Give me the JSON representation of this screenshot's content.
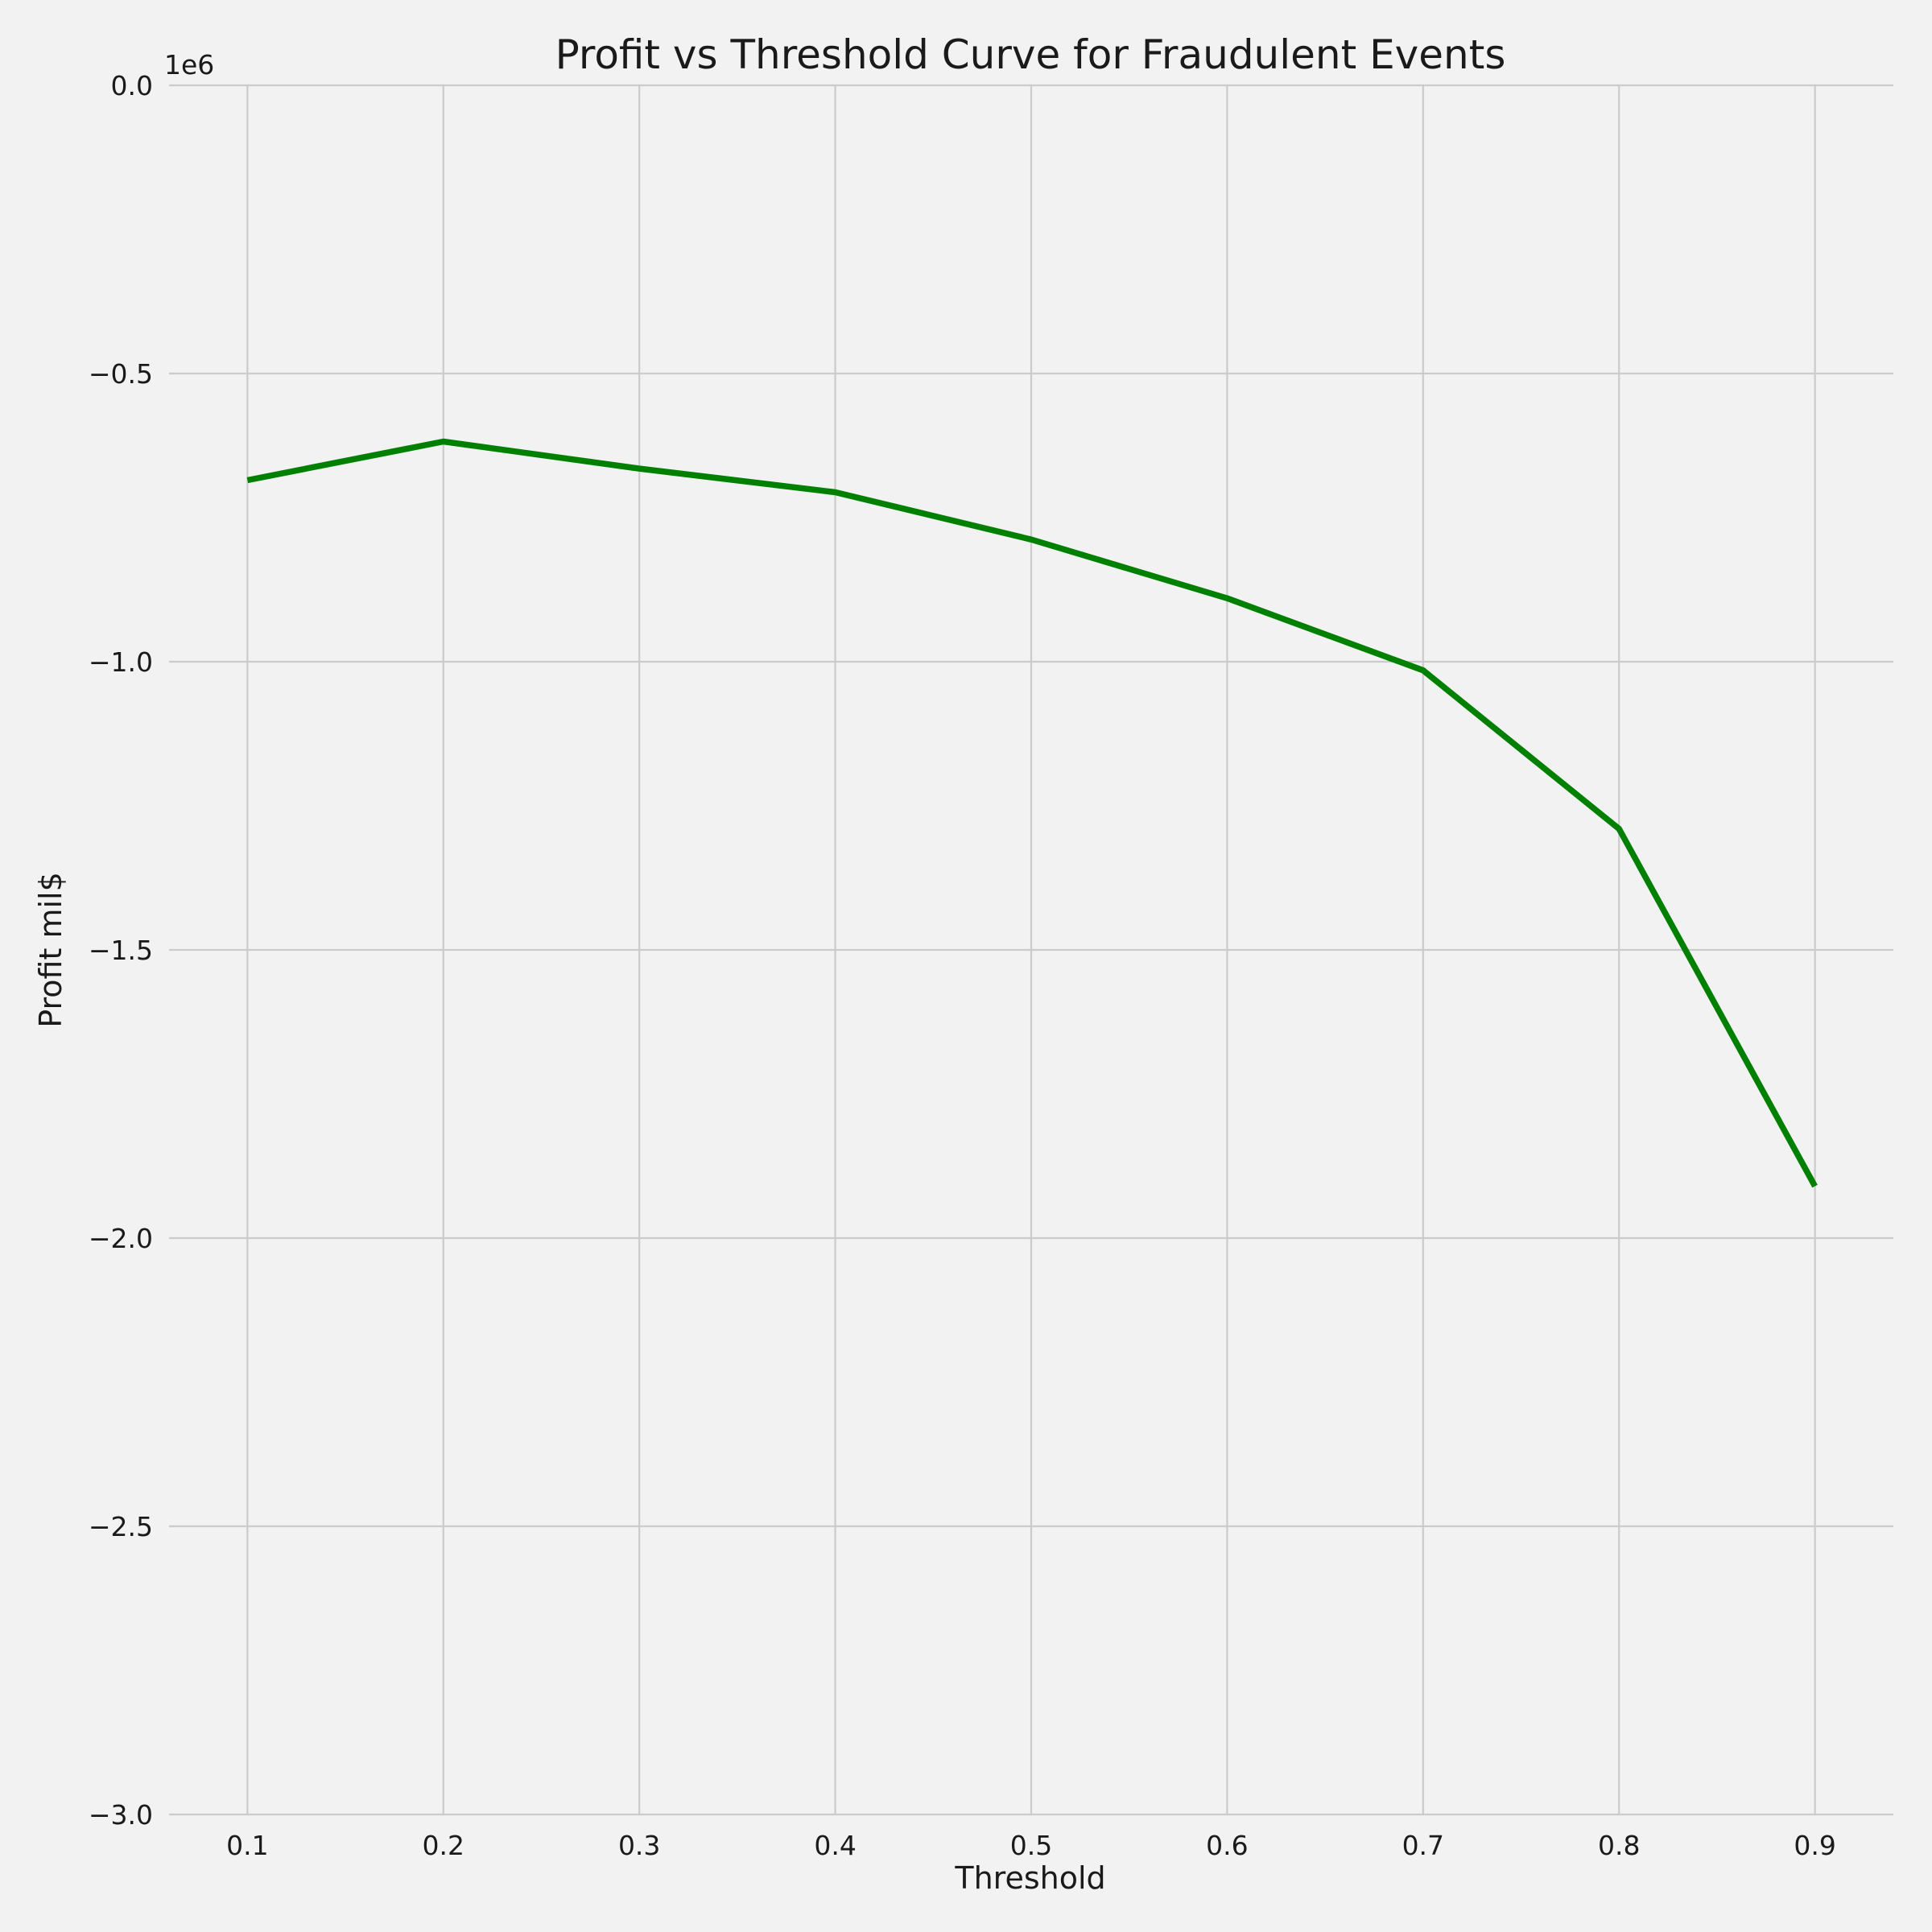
{
  "chart_data": {
    "type": "line",
    "title": "Profit vs Threshold Curve for Fraudulent Events",
    "xlabel": "Threshold",
    "ylabel": "Profit mil$",
    "y_offset_label": "1e6",
    "xlim": [
      0.06,
      0.94
    ],
    "ylim": [
      -3.0,
      0.0
    ],
    "x_ticks": [
      0.1,
      0.2,
      0.3,
      0.4,
      0.5,
      0.6,
      0.7,
      0.8,
      0.9
    ],
    "x_tick_labels": [
      "0.1",
      "0.2",
      "0.3",
      "0.4",
      "0.5",
      "0.6",
      "0.7",
      "0.8",
      "0.9"
    ],
    "y_ticks": [
      0.0,
      -0.5,
      -1.0,
      -1.5,
      -2.0,
      -2.5,
      -3.0
    ],
    "y_tick_labels": [
      "0.0",
      "−0.5",
      "−1.0",
      "−1.5",
      "−2.0",
      "−2.5",
      "−3.0"
    ],
    "grid": true,
    "series": [
      {
        "color": "#008000",
        "x": [
          0.1,
          0.2,
          0.3,
          0.4,
          0.5,
          0.6,
          0.7,
          0.8,
          0.9
        ],
        "y": [
          -0.685,
          -0.618,
          -0.665,
          -0.706,
          -0.788,
          -0.89,
          -1.015,
          -1.29,
          -1.91
        ]
      }
    ]
  }
}
